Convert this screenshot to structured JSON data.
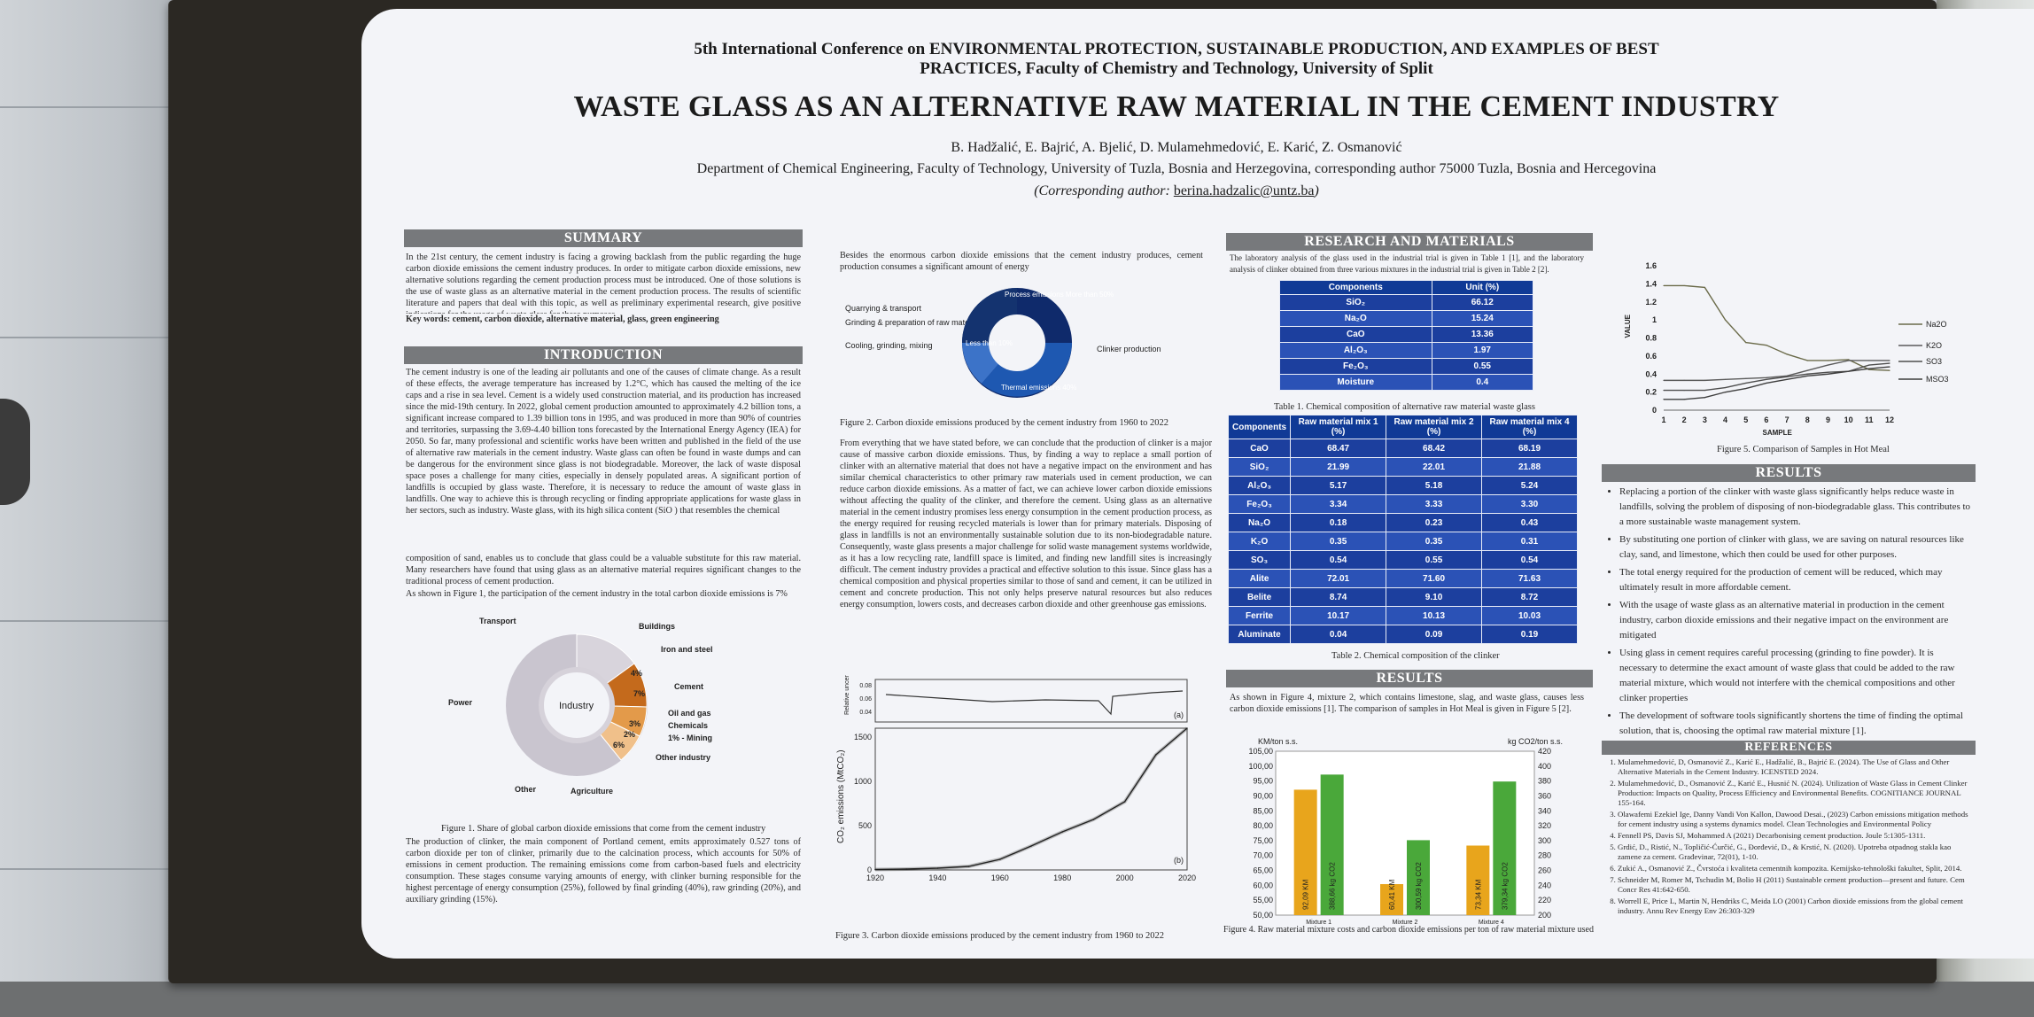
{
  "header": {
    "line1": "5th International Conference on ENVIRONMENTAL PROTECTION, SUSTAINABLE PRODUCTION, AND EXAMPLES OF BEST",
    "line2": "PRACTICES, Faculty of Chemistry and Technology, University of Split",
    "title": "WASTE GLASS AS AN ALTERNATIVE RAW MATERIAL IN THE CEMENT INDUSTRY",
    "authors": "B. Hadžalić, E. Bajrić, A. Bjelić, D. Mulamehmedović, E. Karić, Z. Osmanović",
    "department": "Department of Chemical Engineering, Faculty of Technology, University of Tuzla, Bosnia and Herzegovina, corresponding author 75000 Tuzla, Bosnia and Hercegovina",
    "corresponding_prefix": "(Corresponding author:",
    "corresponding_email": "berina.hadzalic@untz.ba",
    "corresponding_suffix": ")"
  },
  "sections": {
    "summary_title": "SUMMARY",
    "summary_text": "In the 21st century, the cement industry is facing a growing backlash from the public regarding the huge carbon dioxide emissions the cement industry produces. In order to mitigate carbon dioxide emissions, new alternative solutions regarding the cement production process must be introduced. One of those solutions is the use of waste glass as an alternative material in the cement production process. The results of scientific literature and papers that deal with this topic, as well as preliminary experimental research, give positive indications for the usage of waste glass for these purposes.",
    "keywords": "Key words: cement, carbon dioxide, alternative material, glass, green engineering",
    "intro_title": "INTRODUCTION",
    "intro_text": "The cement industry is one of the leading air pollutants and one of the causes of climate change. As a result of these effects, the average temperature has increased by 1.2°C, which has caused the melting of the ice caps and a rise in sea level. Cement is a widely used construction material, and its production has increased since the mid-19th century. In 2022, global cement production amounted to approximately 4.2 billion tons, a significant increase compared to 1.39 billion tons in 1995, and was produced in more than 90% of countries and territories, surpassing the 3.69-4.40 billion tons forecasted by the International Energy Agency (IEA) for 2050. So far, many professional and scientific works have been written and published in the field of the use of alternative raw materials in the cement industry. Waste glass can often be found in waste dumps and can be dangerous for the environment since glass is not biodegradable. Moreover, the lack of waste disposal space poses a challenge for many cities, especially in densely populated areas. A significant portion of landfills is occupied by glass waste. Therefore, it is necessary to reduce the amount of waste glass in landfills. One way to achieve this is through recycling or finding appropriate applications for waste glass in her sectors, such as industry. Waste glass, with its high silica content (SiO ) that resembles the chemical",
    "intro_text2": "composition of sand, enables us to conclude that glass could be a valuable substitute for this raw material. Many researchers have found that using glass as an alternative material requires significant changes to the traditional process of cement production.",
    "intro_text3": "As shown in Figure 1, the participation of the cement industry in the total carbon dioxide emissions is 7%",
    "fig1_caption": "Figure 1. Share of global carbon dioxide emissions that come from the cement industry",
    "fig1_text": "The production of clinker, the main component of Portland cement, emits approximately 0.527 tons of carbon dioxide per ton of clinker, primarily due to the calcination process, which accounts for 50% of emissions in cement production. The remaining emissions come from carbon-based fuels and electricity consumption. These stages consume varying amounts of energy, with clinker burning responsible for the highest percentage of energy consumption (25%), followed by final grinding (40%), raw grinding (20%), and auxiliary grinding (15%).",
    "col2_top": "Besides the enormous carbon dioxide emissions that the cement industry produces, cement production consumes a significant amount of energy",
    "fig2_caption": "Figure 2. Carbon dioxide emissions produced by the cement industry from 1960 to 2022",
    "col2_text": "From everything that we have stated before, we can conclude that the production of clinker is a major cause of massive carbon dioxide emissions. Thus, by finding a way to replace a small portion of clinker with an alternative material that does not have a negative impact on the environment and has similar chemical characteristics to other primary raw materials used in cement production, we can reduce carbon dioxide emissions. As a matter of fact, we can achieve lower carbon dioxide emissions without affecting the quality of the clinker, and therefore the cement. Using glass as an alternative material in the cement industry promises less energy consumption in the cement production process, as the energy required for reusing recycled materials is lower than for primary materials. Disposing of glass in landfills is not an environmentally sustainable solution due to its non-biodegradable nature. Consequently, waste glass presents a major challenge for solid waste management systems worldwide, as it has a low recycling rate, landfill space is limited, and finding new landfill sites is increasingly difficult. The cement industry provides a practical and effective solution to this issue. Since glass has a chemical composition and physical properties similar to those of sand and cement, it can be utilized in cement and concrete production. This not only helps preserve natural resources but also reduces energy consumption, lowers costs, and decreases carbon dioxide and other greenhouse gas emissions.",
    "fig3_caption": "Figure 3. Carbon dioxide emissions produced by the cement industry from 1960 to 2022",
    "research_title": "RESEARCH AND MATERIALS",
    "research_text": "The laboratory analysis of the glass used in the industrial trial is given in Table 1 [1], and the laboratory analysis of clinker obtained from three various mixtures in the industrial trial is given in Table 2 [2].",
    "table1_caption": "Table 1. Chemical composition of alternative raw material waste glass",
    "table2_caption": "Table 2. Chemical composition of the clinker",
    "results_title": "RESULTS",
    "results_text": "As shown in Figure 4, mixture 2, which contains limestone, slag, and waste glass, causes less carbon dioxide emissions [1]. The comparison of samples in Hot Meal is given in Figure 5 [2].",
    "fig4_caption": "Figure 4. Raw material mixture costs and carbon dioxide emissions per ton of raw material mixture used",
    "fig5_caption": "Figure 5. Comparison of Samples in Hot Meal",
    "results2_title": "RESULTS",
    "references_title": "REFERENCES"
  },
  "fig1": {
    "center_label": "Industry",
    "labels": [
      "Transport",
      "Buildings",
      "Iron and steel",
      "Cement",
      "Oil and gas",
      "Chemicals",
      "1% - Mining",
      "Other industry",
      "Agriculture",
      "Other",
      "Power"
    ],
    "pct": [
      "7%",
      "4%",
      "3%",
      "2%",
      "6%"
    ]
  },
  "fig2": {
    "legend": [
      "Quarrying & transport",
      "Grinding & preparation of raw materials",
      "Cooling, grinding, mixing"
    ],
    "center_top": "Process emissions More than 50%",
    "left_seg": "Less than 10%",
    "bottom_seg": "Thermal emissions 40%",
    "right_label": "Clinker production"
  },
  "table1": {
    "headers": [
      "Components",
      "Unit (%)"
    ],
    "rows": [
      [
        "SiO₂",
        "66.12"
      ],
      [
        "Na₂O",
        "15.24"
      ],
      [
        "CaO",
        "13.36"
      ],
      [
        "Al₂O₃",
        "1.97"
      ],
      [
        "Fe₂O₃",
        "0.55"
      ],
      [
        "Moisture",
        "0.4"
      ]
    ]
  },
  "table2": {
    "headers": [
      "Components",
      "Raw material mix 1 (%)",
      "Raw material mix 2 (%)",
      "Raw material mix 4 (%)"
    ],
    "rows": [
      [
        "CaO",
        "68.47",
        "68.42",
        "68.19"
      ],
      [
        "SiO₂",
        "21.99",
        "22.01",
        "21.88"
      ],
      [
        "Al₂O₃",
        "5.17",
        "5.18",
        "5.24"
      ],
      [
        "Fe₂O₃",
        "3.34",
        "3.33",
        "3.30"
      ],
      [
        "Na₂O",
        "0.18",
        "0.23",
        "0.43"
      ],
      [
        "K₂O",
        "0.35",
        "0.35",
        "0.31"
      ],
      [
        "SO₃",
        "0.54",
        "0.55",
        "0.54"
      ],
      [
        "Alite",
        "72.01",
        "71.60",
        "71.63"
      ],
      [
        "Belite",
        "8.74",
        "9.10",
        "8.72"
      ],
      [
        "Ferrite",
        "10.17",
        "10.13",
        "10.03"
      ],
      [
        "Aluminate",
        "0.04",
        "0.09",
        "0.19"
      ]
    ]
  },
  "results_bullets": [
    "Replacing a portion of the clinker with waste glass significantly helps reduce waste in landfills, solving the problem of disposing of non-biodegradable glass. This contributes to a more sustainable waste management system.",
    "By substituting one portion of clinker with glass, we are saving on natural resources like clay, sand, and limestone, which then could be used for other purposes.",
    "The total energy required for the production of cement will be reduced, which may ultimately result in more affordable cement.",
    "With the usage of waste glass as an alternative material in production in the cement industry, carbon dioxide emissions and their negative impact on the environment are mitigated",
    "Using glass in cement requires careful processing (grinding to fine powder). It is necessary to determine the exact amount of waste glass that could be added to the raw material mixture, which would not interfere with the chemical compositions and other clinker properties",
    "The development of software tools significantly shortens the time of finding the optimal solution, that is, choosing the optimal raw material mixture [1]."
  ],
  "references": [
    "Mulamehmedović, D, Osmanović Z., Karić E., Hadžalić, B., Bajrić E. (2024). The Use of Glass and Other Alternative Materials in the Cement Industry. ICENSTED 2024.",
    "Mulamehmedović, D., Osmanović Z., Karić E., Husnić N. (2024). Utilization of Waste Glass in Cement Clinker Production: Impacts on Quality, Process Efficiency and Environmental Benefits. COGNITIANCE JOURNAL 155-164.",
    "Olawafemi Ezekiel Ige, Danny Vandi Von Kallon, Dawood Desai., (2023) Carbon emissions mitigation methods for cement industry using a systems dynamics model. Clean Technologies and Environmental Policy",
    "Fennell PS, Davis SJ, Mohammed A (2021) Decarbonising cement production. Joule 5:1305-1311.",
    "Grdić, D., Ristić, N., Topličić-Ćurčić, G., Đorđević, D., & Krstić, N. (2020). Upotreba otpadnog stakla kao zamene za cement. Građevinar, 72(01), 1-10.",
    "Zukić A., Osmanović Z., Čvrstoća i kvaliteta cementnih kompozita. Kemijsko-tehnološki fakultet, Split, 2014.",
    "Schneider M, Romer M, Tschudin M, Bolio H (2011) Sustainable cement production—present and future. Cem Concr Res 41:642-650.",
    "Worrell E, Price L, Martin N, Hendriks C, Meida LO (2001) Carbon dioxide emissions from the global cement industry. Annu Rev Energy Env 26:303-329"
  ],
  "chart_data": [
    {
      "type": "line",
      "title": "Figure 3",
      "ylabel": "CO₂ emissions (MtCO₂)",
      "x": [
        1920,
        1930,
        1940,
        1950,
        1960,
        1970,
        1980,
        1990,
        2000,
        2010,
        2020
      ],
      "values": [
        5,
        10,
        20,
        40,
        120,
        270,
        430,
        570,
        770,
        1300,
        1600
      ],
      "xlim": [
        1920,
        2020
      ],
      "ylim": [
        0,
        1600
      ],
      "yticks": [
        0,
        500,
        1000,
        1500
      ],
      "xticks": [
        1920,
        1940,
        1960,
        1980,
        2000,
        2020
      ],
      "inset_ticks": [
        "0.08",
        "0.06",
        "0.04"
      ],
      "inset_label": "Relative uncertainty",
      "panel_labels": [
        "(a)",
        "(b)"
      ]
    },
    {
      "type": "bar",
      "title": "",
      "left_axis_label": "KM/ton s.s.",
      "right_axis_label": "kg CO2/ton s.s.",
      "categories": [
        "Mixture 1",
        "Mixture 2",
        "Mixture 4"
      ],
      "series": [
        {
          "name": "KM",
          "values": [
            92.09,
            60.41,
            73.34
          ],
          "labels": [
            "92,09 KM",
            "60,41 KM",
            "73,34 KM"
          ],
          "color": "#e8a51c"
        },
        {
          "name": "kg CO2",
          "values": [
            388.66,
            300.59,
            379.34
          ],
          "labels": [
            "388,66 kg CO2",
            "300,59 kg CO2",
            "379,34 kg CO2"
          ],
          "color": "#4aa83a"
        }
      ],
      "ylim_left": [
        50,
        105
      ],
      "ylim_right": [
        200,
        420
      ],
      "left_ticks": [
        "105,00",
        "100,00",
        "95,00",
        "90,00",
        "85,00",
        "80,00",
        "75,00",
        "70,00",
        "65,00",
        "60,00",
        "55,00",
        "50,00"
      ],
      "right_ticks": [
        "420",
        "400",
        "380",
        "360",
        "340",
        "320",
        "300",
        "280",
        "260",
        "240",
        "220",
        "200"
      ]
    },
    {
      "type": "line",
      "title": "",
      "xlabel": "SAMPLE",
      "ylabel": "VALUE",
      "x": [
        1,
        2,
        3,
        4,
        5,
        6,
        7,
        8,
        9,
        10,
        11,
        12
      ],
      "ylim": [
        0,
        1.6
      ],
      "yticks": [
        "1.6",
        "1.4",
        "1.2",
        "1",
        "0.8",
        "0.6",
        "0.4",
        "0.2",
        "0"
      ],
      "series": [
        {
          "name": "Na2O",
          "values": [
            1.38,
            1.38,
            1.36,
            1.0,
            0.75,
            0.72,
            0.62,
            0.55,
            0.55,
            0.56,
            0.45,
            0.44
          ]
        },
        {
          "name": "K2O",
          "values": [
            0.33,
            0.33,
            0.33,
            0.34,
            0.35,
            0.36,
            0.38,
            0.44,
            0.5,
            0.55,
            0.55,
            0.55
          ]
        },
        {
          "name": "SO3",
          "values": [
            0.22,
            0.22,
            0.22,
            0.25,
            0.3,
            0.34,
            0.37,
            0.4,
            0.42,
            0.43,
            0.5,
            0.52
          ]
        },
        {
          "name": "MSO3",
          "values": [
            0.12,
            0.12,
            0.14,
            0.2,
            0.24,
            0.3,
            0.34,
            0.38,
            0.4,
            0.43,
            0.46,
            0.48
          ]
        }
      ]
    }
  ]
}
